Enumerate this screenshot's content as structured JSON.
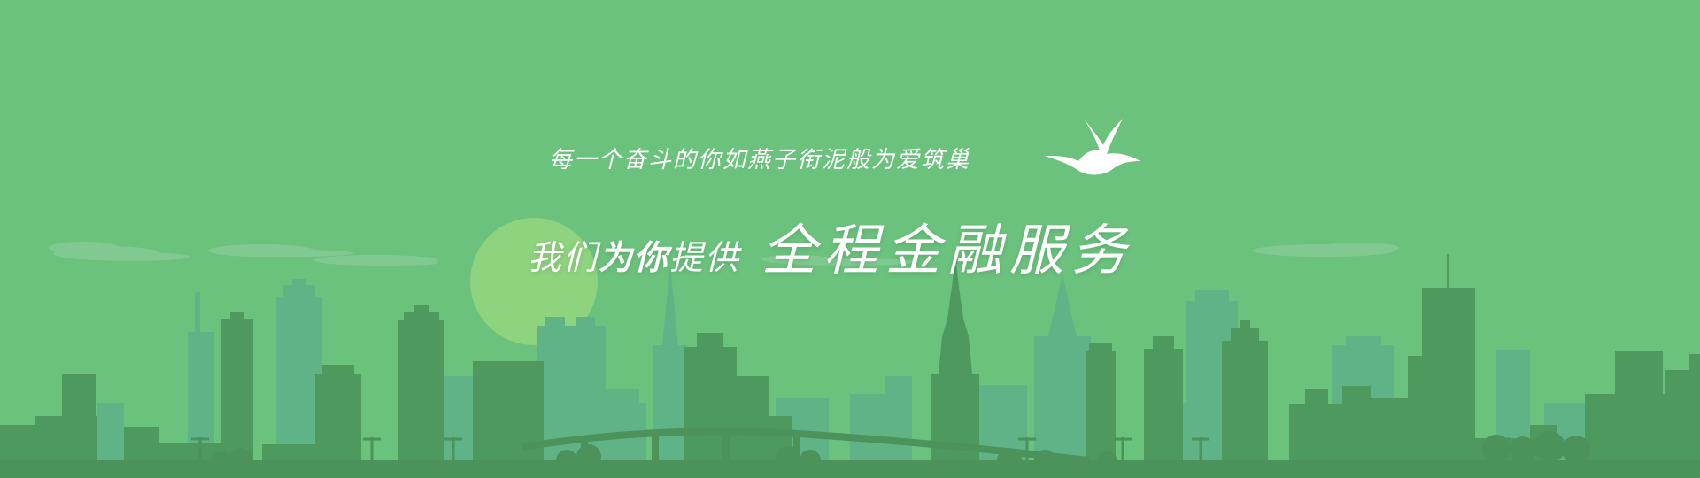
{
  "banner": {
    "tagline": "每一个奋斗的你如燕子衔泥般为爱筑巢",
    "headline_prefix": "我们",
    "headline_bold": "为你",
    "headline_suffix": "提供",
    "headline_service": "全程金融服务",
    "logo_icon": "swallow-icon",
    "colors": {
      "background": "#6bc27d",
      "sun": "#8ed37e",
      "cloud": "#80c991",
      "skyline_back": "#5fb387",
      "skyline_front": "#4e9a5e",
      "ground": "#4b935a",
      "text": "#ffffff"
    }
  }
}
